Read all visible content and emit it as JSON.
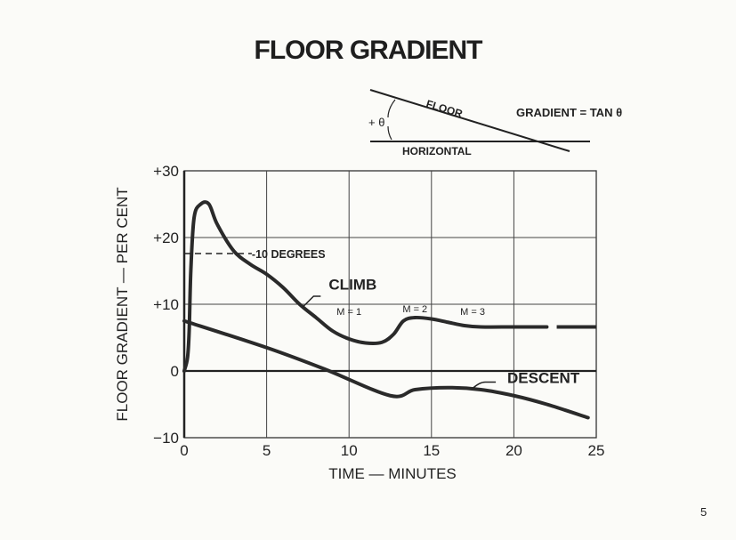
{
  "title": "FLOOR GRADIENT",
  "page_number": "5",
  "inset_diagram": {
    "floor_label": "FLOOR",
    "horizontal_label": "HORIZONTAL",
    "angle_label": "+ θ",
    "formula": "GRADIENT = TAN θ"
  },
  "chart_data": {
    "type": "line",
    "xlabel": "TIME — MINUTES",
    "ylabel": "FLOOR GRADIENT — PER CENT",
    "xlim": [
      0,
      25
    ],
    "ylim": [
      -10,
      30
    ],
    "x_ticks": [
      "0",
      "5",
      "10",
      "15",
      "20",
      "25"
    ],
    "x_tick_values": [
      0,
      5,
      10,
      15,
      20,
      25
    ],
    "y_ticks": [
      "−10",
      "0",
      "+10",
      "+20",
      "+30"
    ],
    "y_tick_values": [
      -10,
      0,
      10,
      20,
      30
    ],
    "grid": true,
    "series": [
      {
        "name": "CLIMB",
        "x": [
          0,
          0.2,
          0.3,
          0.4,
          0.6,
          1,
          1.5,
          2,
          3,
          4,
          5,
          6,
          7,
          8,
          9,
          10,
          11,
          12,
          12.7,
          13.3,
          14,
          15,
          16,
          17,
          18,
          20,
          22
        ],
        "y": [
          0,
          2,
          6,
          15,
          23,
          25,
          25,
          22,
          18,
          16,
          14.5,
          12.5,
          10,
          8,
          6,
          4.8,
          4.2,
          4.3,
          5.5,
          7.5,
          8,
          7.8,
          7.3,
          6.8,
          6.6,
          6.6,
          6.6
        ],
        "extension_dashed": {
          "x": [
            22.6,
            25
          ],
          "y": [
            6.6,
            6.6
          ]
        }
      },
      {
        "name": "DESCENT",
        "x": [
          0,
          5,
          8.5,
          12.5,
          14,
          16,
          18,
          20,
          22,
          24.5
        ],
        "y": [
          7.5,
          3.5,
          0.3,
          -3.7,
          -2.8,
          -2.5,
          -2.8,
          -3.7,
          -5,
          -7
        ]
      }
    ],
    "annotations": [
      {
        "text": "-10 DEGREES",
        "y": 17.6,
        "style": "dashed reference line"
      },
      {
        "text": "M = 1",
        "x": 10
      },
      {
        "text": "M = 2",
        "x": 14
      },
      {
        "text": "M = 3",
        "x": 17.5
      }
    ]
  }
}
